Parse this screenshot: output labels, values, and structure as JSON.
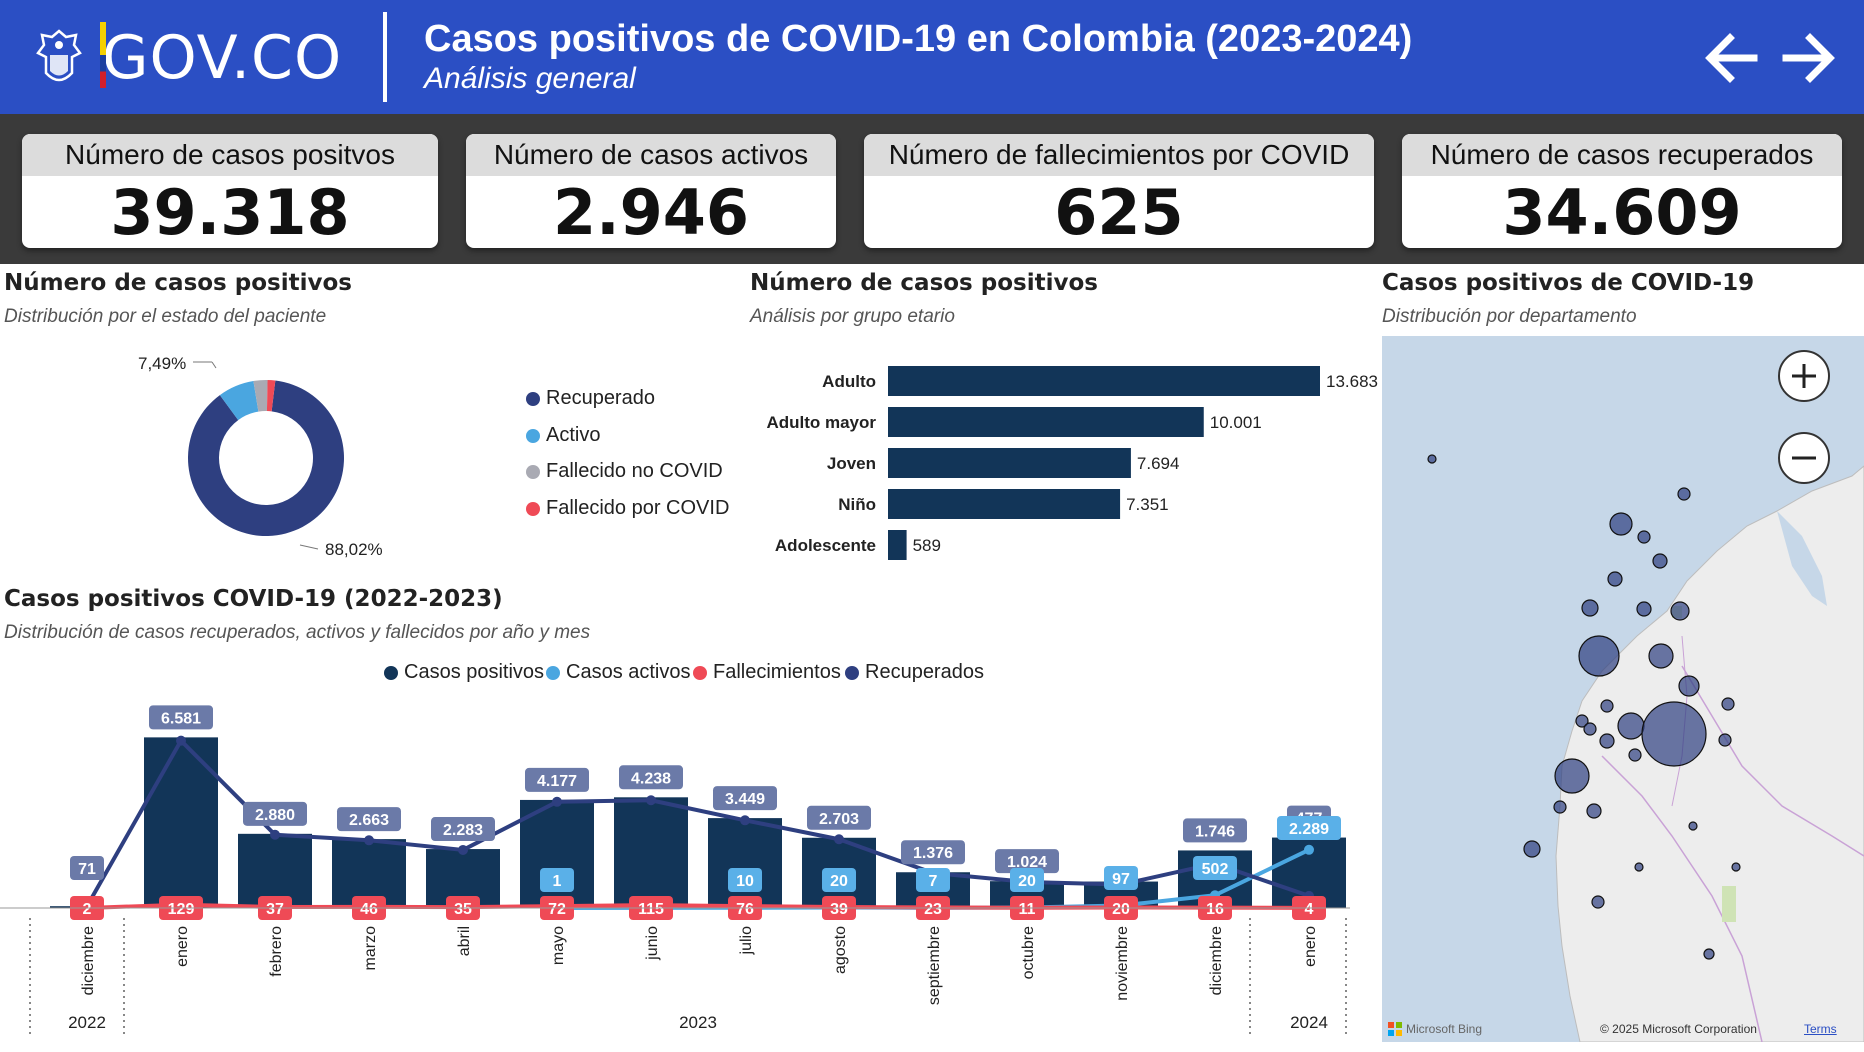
{
  "header": {
    "logo_text": "GOV.CO",
    "title": "Casos positivos de COVID-19 en Colombia (2023-2024)",
    "subtitle": "Análisis general",
    "back_icon": "arrow-left-icon",
    "forward_icon": "arrow-right-icon"
  },
  "kpis": [
    {
      "label": "Número de casos positvos",
      "value": "39.318"
    },
    {
      "label": "Número de casos activos",
      "value": "2.946"
    },
    {
      "label": "Número de fallecimientos por COVID",
      "value": "625"
    },
    {
      "label": "Número de casos recuperados",
      "value": "34.609"
    }
  ],
  "donut": {
    "title": "Número de casos positivos",
    "subtitle": "Distribución por el estado del paciente",
    "label_small": "7,49%",
    "label_large": "88,02%",
    "legend": [
      {
        "label": "Recuperado",
        "color": "#2e3f80"
      },
      {
        "label": "Activo",
        "color": "#4aa6e0"
      },
      {
        "label": "Fallecido no COVID",
        "color": "#a9aab3"
      },
      {
        "label": "Fallecido por COVID",
        "color": "#ef4a56"
      }
    ]
  },
  "age": {
    "title": "Número de casos positivos",
    "subtitle": "Análisis por grupo etario"
  },
  "trend": {
    "title": "Casos positivos COVID-19 (2022-2023)",
    "subtitle": "Distribución de casos recuperados, activos y fallecidos por año y mes",
    "legend": [
      {
        "label": "Casos positivos",
        "color": "#123558"
      },
      {
        "label": "Casos activos",
        "color": "#4aa6e0"
      },
      {
        "label": "Fallecimientos",
        "color": "#ef4a56"
      },
      {
        "label": "Recuperados",
        "color": "#2e3f80"
      }
    ],
    "years": [
      "2022",
      "2023",
      "2024"
    ]
  },
  "map": {
    "title": "Casos positivos de COVID-19",
    "subtitle": "Distribución por departamento",
    "zoom_in_icon": "plus-icon",
    "zoom_out_icon": "minus-icon",
    "bing_label": "Microsoft Bing",
    "copyright": "© 2025 Microsoft Corporation",
    "terms": "Terms"
  },
  "chart_data": [
    {
      "type": "pie",
      "variant": "donut",
      "title": "Número de casos positivos",
      "categories": [
        "Recuperado",
        "Activo",
        "Fallecido no COVID",
        "Fallecido por COVID"
      ],
      "values": [
        88.02,
        7.49,
        2.9,
        1.59
      ],
      "colors": [
        "#2e3f80",
        "#4aa6e0",
        "#a9aab3",
        "#ef4a56"
      ],
      "data_labels": {
        "Recuperado": "88,02%",
        "Activo": "7,49%"
      }
    },
    {
      "type": "bar",
      "orientation": "horizontal",
      "title": "Número de casos positivos",
      "categories": [
        "Adulto",
        "Adulto mayor",
        "Joven",
        "Niño",
        "Adolescente"
      ],
      "values": [
        13683,
        10001,
        7694,
        7351,
        589
      ],
      "labels": [
        "13.683",
        "10.001",
        "7.694",
        "7.351",
        "589"
      ],
      "color": "#123558"
    },
    {
      "type": "bar",
      "title": "Casos positivos COVID-19 (2022-2023)",
      "categories": [
        "diciembre",
        "enero",
        "febrero",
        "marzo",
        "abril",
        "mayo",
        "junio",
        "julio",
        "agosto",
        "septiembre",
        "octubre",
        "noviembre",
        "diciembre",
        "enero"
      ],
      "years": [
        "2022",
        "2023",
        "2023",
        "2023",
        "2023",
        "2023",
        "2023",
        "2023",
        "2023",
        "2023",
        "2023",
        "2023",
        "2023",
        "2024"
      ],
      "series": [
        {
          "name": "Casos positivos",
          "kind": "bar",
          "color": "#123558",
          "values": [
            71,
            6710,
            2917,
            2709,
            2318,
            4250,
            4353,
            3535,
            2762,
            1406,
            1055,
            1040,
            2264,
            2770
          ]
        },
        {
          "name": "Casos activos",
          "kind": "line",
          "color": "#4aa6e0",
          "values": [
            null,
            null,
            null,
            null,
            null,
            1,
            null,
            10,
            20,
            7,
            20,
            97,
            502,
            2289
          ],
          "labels": [
            "",
            "",
            "",
            "",
            "",
            "1",
            "",
            "10",
            "20",
            "7",
            "20",
            "97",
            "502",
            "2.289"
          ]
        },
        {
          "name": "Fallecimientos",
          "kind": "line",
          "color": "#ef4a56",
          "values": [
            2,
            129,
            37,
            46,
            35,
            72,
            115,
            76,
            39,
            23,
            11,
            20,
            16,
            4
          ],
          "labels": [
            "2",
            "129",
            "37",
            "46",
            "35",
            "72",
            "115",
            "76",
            "39",
            "23",
            "11",
            "20",
            "16",
            "4"
          ]
        },
        {
          "name": "Recuperados",
          "kind": "line",
          "color": "#2e3f80",
          "values": [
            71,
            6581,
            2880,
            2663,
            2283,
            4177,
            4238,
            3449,
            2703,
            1376,
            1024,
            923,
            1746,
            477
          ],
          "labels": [
            "71",
            "6.581",
            "2.880",
            "2.663",
            "2.283",
            "4.177",
            "4.238",
            "3.449",
            "2.703",
            "1.376",
            "1.024",
            "",
            "1.746",
            "477"
          ]
        }
      ],
      "ylim": [
        0,
        7000
      ]
    }
  ]
}
